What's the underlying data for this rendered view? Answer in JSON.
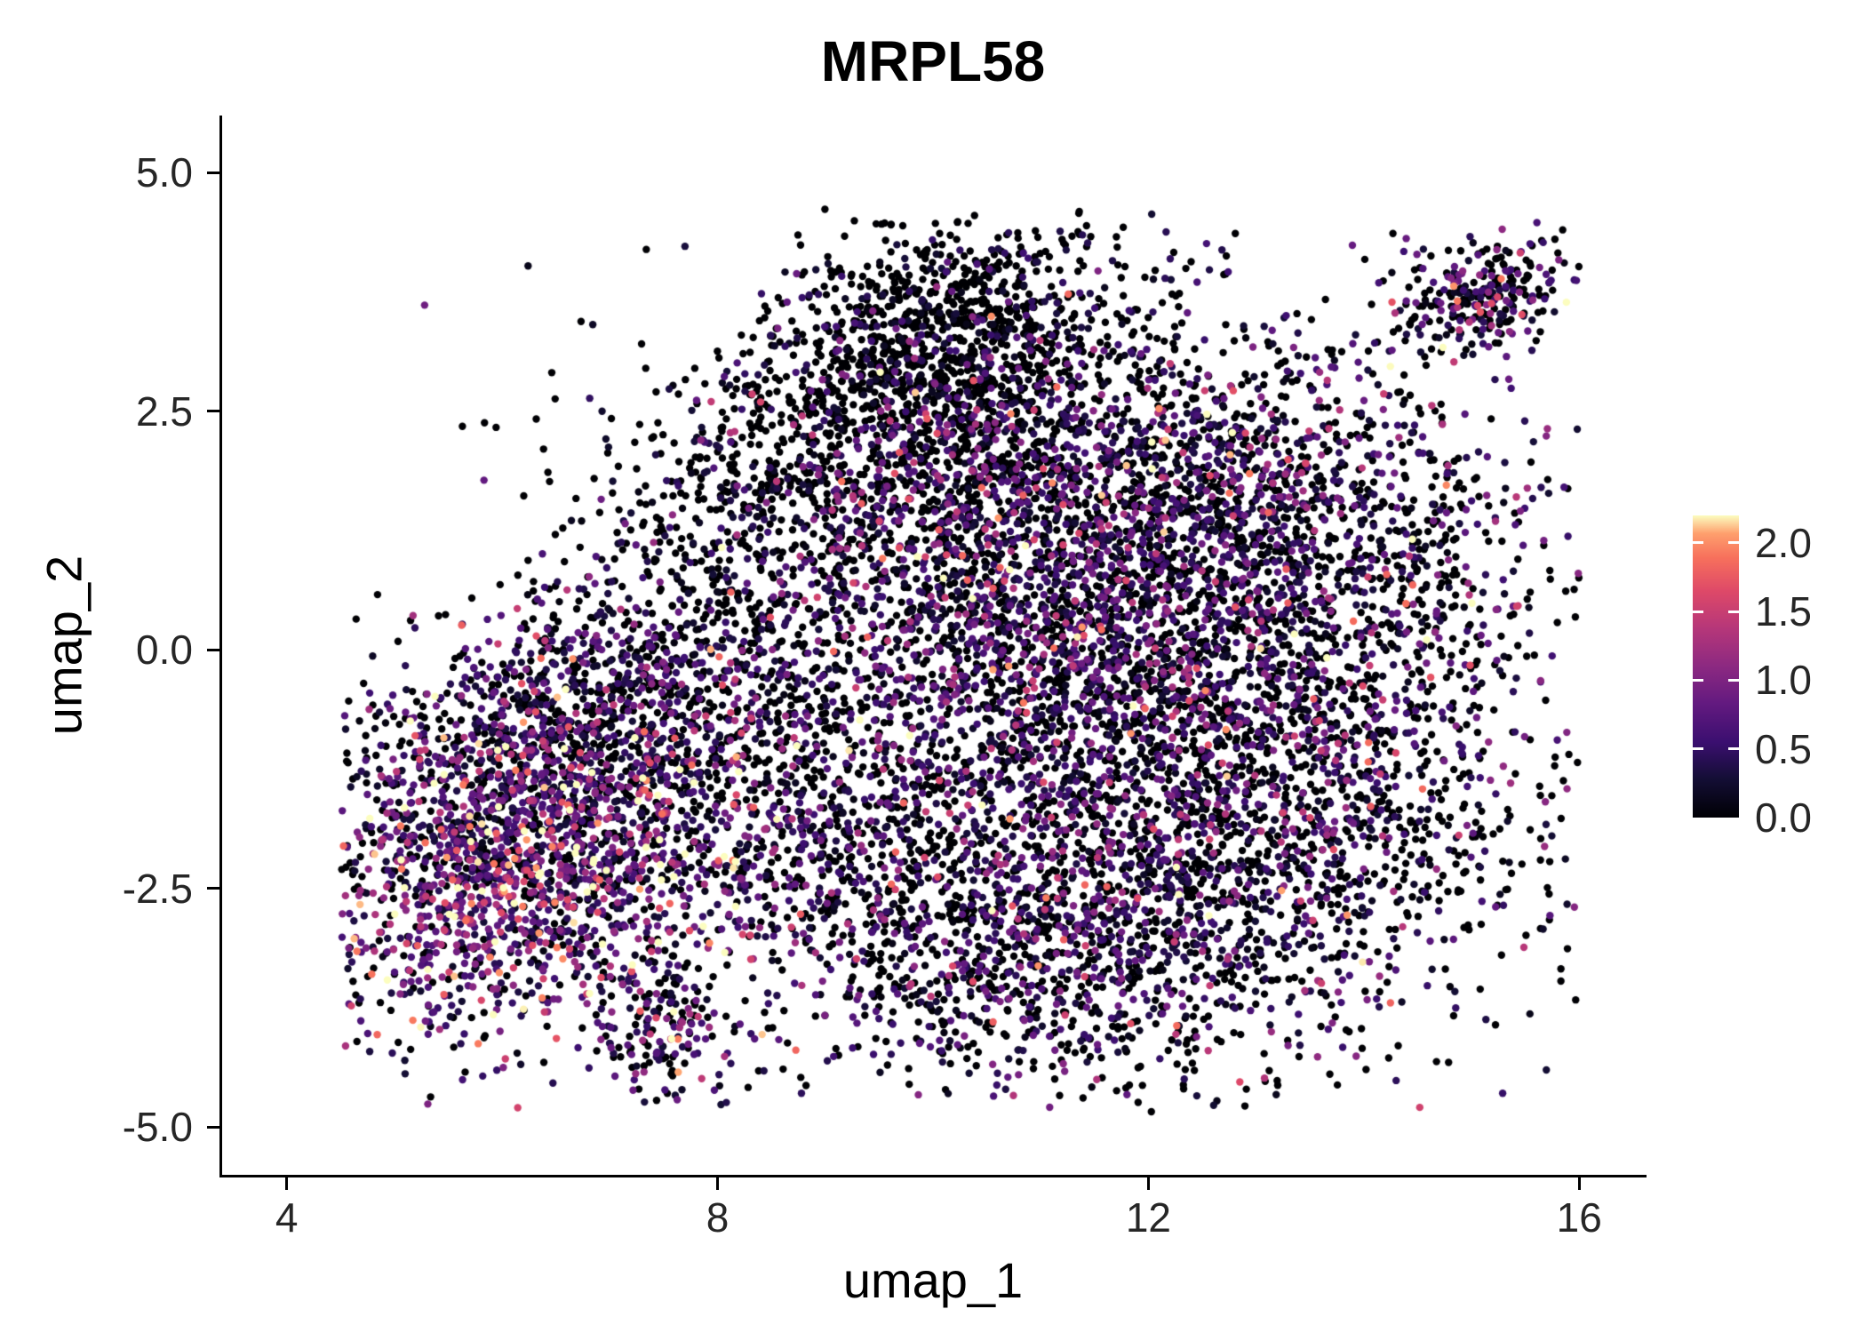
{
  "chart_data": {
    "type": "scatter",
    "title": "MRPL58",
    "xlabel": "umap_1",
    "ylabel": "umap_2",
    "xlim": [
      3.4,
      16.6
    ],
    "ylim": [
      -5.5,
      5.6
    ],
    "x_ticks": [
      4,
      8,
      12,
      16
    ],
    "x_tick_labels": [
      "4",
      "8",
      "12",
      "16"
    ],
    "y_ticks": [
      5.0,
      2.5,
      0.0,
      -2.5,
      -5.0
    ],
    "y_tick_labels": [
      "5.0",
      "2.5",
      "0.0",
      "-2.5",
      "-5.0"
    ],
    "grid": false,
    "background": "#ffffff",
    "point_radius_px": 4.2,
    "seed": 42,
    "colorbar": {
      "position": "right",
      "domain": [
        0,
        2.2
      ],
      "ticks": [
        0.0,
        0.5,
        1.0,
        1.5,
        2.0
      ],
      "tick_labels": [
        "0.0",
        "0.5",
        "1.0",
        "1.5",
        "2.0"
      ],
      "colormap": "magma",
      "stops": [
        [
          0.0,
          "#000004"
        ],
        [
          0.13,
          "#140e36"
        ],
        [
          0.25,
          "#3b0f70"
        ],
        [
          0.38,
          "#641a80"
        ],
        [
          0.5,
          "#8c2981"
        ],
        [
          0.63,
          "#b73779"
        ],
        [
          0.75,
          "#de4968"
        ],
        [
          0.86,
          "#f7705c"
        ],
        [
          0.94,
          "#fe9f6d"
        ],
        [
          1.0,
          "#fcfdbf"
        ]
      ]
    },
    "bounds": {
      "x_min": 4.5,
      "x_max": 16.0,
      "y_min": -4.85,
      "y_max": 4.65
    },
    "clusters": [
      {
        "name": "left-main",
        "cx": 6.2,
        "cy": -2.1,
        "sx": 1.05,
        "sy": 0.95,
        "rho": 0.25,
        "n": 1900,
        "p_zero": 0.26,
        "expr_scale": 0.85
      },
      {
        "name": "left-upper",
        "cx": 6.9,
        "cy": -0.5,
        "sx": 1.0,
        "sy": 0.7,
        "rho": 0.35,
        "n": 800,
        "p_zero": 0.5,
        "expr_scale": 0.55
      },
      {
        "name": "bottom-tail",
        "cx": 7.5,
        "cy": -3.95,
        "sx": 0.3,
        "sy": 0.45,
        "rho": 0.1,
        "n": 170,
        "p_zero": 0.35,
        "expr_scale": 0.75
      },
      {
        "name": "top-lobe",
        "cx": 10.2,
        "cy": 3.4,
        "sx": 0.85,
        "sy": 0.6,
        "rho": 0.15,
        "n": 850,
        "p_zero": 0.8,
        "expr_scale": 0.35
      },
      {
        "name": "top-mid",
        "cx": 9.9,
        "cy": 2.3,
        "sx": 1.05,
        "sy": 0.65,
        "rho": 0.1,
        "n": 650,
        "p_zero": 0.65,
        "expr_scale": 0.5
      },
      {
        "name": "center",
        "cx": 10.5,
        "cy": 0.8,
        "sx": 1.15,
        "sy": 1.15,
        "rho": 0.0,
        "n": 1500,
        "p_zero": 0.45,
        "expr_scale": 0.7
      },
      {
        "name": "upper-left-edge",
        "cx": 8.4,
        "cy": 1.5,
        "sx": 0.85,
        "sy": 0.85,
        "rho": 0.3,
        "n": 420,
        "p_zero": 0.72,
        "expr_scale": 0.45
      },
      {
        "name": "bridge",
        "cx": 8.9,
        "cy": -1.7,
        "sx": 0.9,
        "sy": 0.85,
        "rho": 0.0,
        "n": 620,
        "p_zero": 0.5,
        "expr_scale": 0.6
      },
      {
        "name": "right-upper",
        "cx": 12.9,
        "cy": 1.4,
        "sx": 1.3,
        "sy": 1.0,
        "rho": -0.1,
        "n": 1600,
        "p_zero": 0.5,
        "expr_scale": 0.62
      },
      {
        "name": "right-main",
        "cx": 12.7,
        "cy": -1.3,
        "sx": 1.5,
        "sy": 1.3,
        "rho": -0.1,
        "n": 2600,
        "p_zero": 0.5,
        "expr_scale": 0.58
      },
      {
        "name": "bottom-center",
        "cx": 10.9,
        "cy": -3.1,
        "sx": 1.2,
        "sy": 0.8,
        "rho": 0.0,
        "n": 1100,
        "p_zero": 0.5,
        "expr_scale": 0.6
      },
      {
        "name": "satellite-top-right",
        "cx": 15.1,
        "cy": 3.7,
        "sx": 0.42,
        "sy": 0.3,
        "rho": 0.35,
        "n": 270,
        "p_zero": 0.45,
        "expr_scale": 0.7
      },
      {
        "name": "sparse-halo",
        "cx": 10.6,
        "cy": -0.2,
        "sx": 2.6,
        "sy": 2.1,
        "rho": 0.0,
        "n": 450,
        "p_zero": 0.62,
        "expr_scale": 0.5
      }
    ]
  }
}
